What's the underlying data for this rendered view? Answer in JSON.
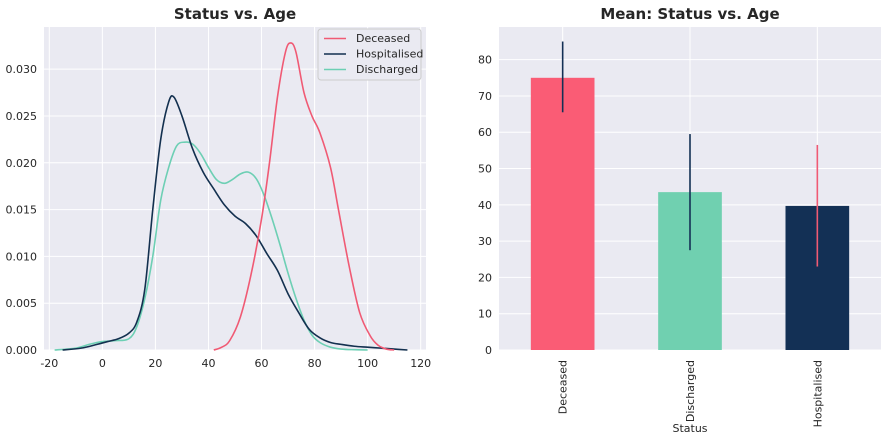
{
  "chart_data": [
    {
      "type": "line",
      "title": "Status vs. Age",
      "xlabel": "",
      "ylabel": "",
      "xlim": [
        -22,
        122
      ],
      "ylim": [
        0,
        0.0345
      ],
      "xticks": [
        -20,
        0,
        20,
        40,
        60,
        80,
        100,
        120
      ],
      "yticks": [
        0.0,
        0.005,
        0.01,
        0.015,
        0.02,
        0.025,
        0.03
      ],
      "ytick_labels": [
        "0.000",
        "0.005",
        "0.010",
        "0.015",
        "0.020",
        "0.025",
        "0.030"
      ],
      "grid": true,
      "legend_position": "top-right",
      "series": [
        {
          "name": "Deceased",
          "color": "#f05a74",
          "x": [
            42,
            45,
            48,
            52,
            56,
            60,
            63,
            66,
            69,
            71,
            73,
            76,
            79,
            82,
            86,
            89,
            93,
            97,
            101,
            104,
            107,
            110
          ],
          "y": [
            0.0,
            0.0003,
            0.001,
            0.0035,
            0.008,
            0.014,
            0.02,
            0.027,
            0.0318,
            0.0328,
            0.0318,
            0.0275,
            0.025,
            0.0232,
            0.0195,
            0.015,
            0.009,
            0.004,
            0.0015,
            0.0005,
            0.0001,
            0.0
          ]
        },
        {
          "name": "Hospitalised",
          "color": "#13304f",
          "x": [
            -15,
            -8,
            -2,
            2,
            6,
            10,
            13,
            16,
            19,
            22,
            25,
            27,
            30,
            34,
            38,
            42,
            46,
            50,
            54,
            58,
            62,
            66,
            70,
            74,
            78,
            82,
            86,
            90,
            95,
            100,
            105,
            110,
            115
          ],
          "y": [
            0.0,
            0.0002,
            0.0006,
            0.0009,
            0.0012,
            0.0018,
            0.003,
            0.0065,
            0.015,
            0.0225,
            0.0265,
            0.027,
            0.025,
            0.0215,
            0.019,
            0.0172,
            0.0155,
            0.0143,
            0.0135,
            0.0122,
            0.0103,
            0.0085,
            0.006,
            0.004,
            0.0022,
            0.0013,
            0.0008,
            0.0006,
            0.0004,
            0.0003,
            0.0002,
            0.0001,
            0.0
          ]
        },
        {
          "name": "Discharged",
          "color": "#6dcfb4",
          "x": [
            -18,
            -10,
            -5,
            0,
            5,
            10,
            13,
            16,
            19,
            22,
            25,
            28,
            31,
            34,
            37,
            40,
            43,
            46,
            49,
            52,
            55,
            58,
            61,
            64,
            67,
            70,
            73,
            76,
            79,
            82,
            86,
            90,
            95,
            100
          ],
          "y": [
            0.0,
            0.0002,
            0.0006,
            0.0009,
            0.001,
            0.0012,
            0.0025,
            0.0055,
            0.01,
            0.016,
            0.0195,
            0.0218,
            0.0222,
            0.022,
            0.021,
            0.0195,
            0.0182,
            0.0178,
            0.0182,
            0.0188,
            0.019,
            0.0183,
            0.0165,
            0.014,
            0.0112,
            0.0082,
            0.0055,
            0.0032,
            0.0016,
            0.0008,
            0.0003,
            0.0001,
            3e-05,
            0.0
          ]
        }
      ]
    },
    {
      "type": "bar",
      "title": "Mean: Status vs. Age",
      "xlabel": "Status",
      "ylabel": "",
      "ylim": [
        0,
        89
      ],
      "yticks": [
        0,
        10,
        20,
        30,
        40,
        50,
        60,
        70,
        80
      ],
      "grid": true,
      "categories": [
        "Deceased",
        "Discharged",
        "Hospitalised"
      ],
      "values": [
        75,
        43.5,
        39.7
      ],
      "error": [
        [
          65.5,
          85
        ],
        [
          27.5,
          59.5
        ],
        [
          23,
          56.5
        ]
      ],
      "bar_colors": [
        "#fa5c75",
        "#70d0b0",
        "#133055"
      ],
      "error_colors": [
        "#133055",
        "#133055",
        "#f05a74"
      ]
    }
  ]
}
